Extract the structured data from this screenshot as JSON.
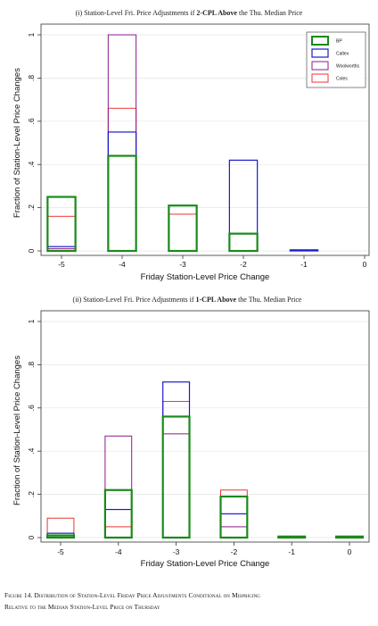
{
  "figure": {
    "caption_line1": "Figure 14. Distribution of Station-Level Friday Price Adjustments Conditional on Mispricing",
    "caption_line2": "Relative to the Median Station-Level Price on Thursday"
  },
  "colors": {
    "BP": "#1a8a1a",
    "Caltex": "#1a1acc",
    "Woolworths": "#8c1a8c",
    "Coles": "#ee3333"
  },
  "chart_data": [
    {
      "type": "bar",
      "title_pre": "(i) Station-Level Fri. Price Adjustments if ",
      "title_bold": "2-CPL Above",
      "title_post": " the Thu. Median Price",
      "xlabel": "Friday Station-Level Price Change",
      "ylabel": "Fraction of Station-Level Price Changes",
      "categories": [
        -5,
        -4,
        -3,
        -2,
        -1,
        0
      ],
      "xtick_labels": [
        "-5",
        "-4",
        "-3",
        "-2",
        "-1",
        "0"
      ],
      "ylim": [
        0,
        1
      ],
      "yticks": [
        0,
        0.2,
        0.4,
        0.6,
        0.8,
        1
      ],
      "ytick_labels": [
        "0",
        ".2",
        ".4",
        ".6",
        ".8",
        "1"
      ],
      "legend": {
        "entries": [
          "BP",
          "Caltex",
          "Woolworths",
          "Coles"
        ],
        "placement": "top-right"
      },
      "series": [
        {
          "name": "BP",
          "values": [
            0.25,
            0.44,
            0.21,
            0.08,
            0,
            0
          ]
        },
        {
          "name": "Caltex",
          "values": [
            0.02,
            0.55,
            0,
            0.42,
            0.005,
            0
          ]
        },
        {
          "name": "Woolworths",
          "values": [
            0.01,
            1.0,
            0,
            0,
            0,
            0
          ]
        },
        {
          "name": "Coles",
          "values": [
            0.16,
            0.66,
            0.17,
            0,
            0,
            0
          ]
        }
      ]
    },
    {
      "type": "bar",
      "title_pre": "(ii) Station-Level Fri. Price Adjustments if ",
      "title_bold": "1-CPL Above",
      "title_post": " the Thu. Median Price",
      "xlabel": "Friday Station-Level Price Change",
      "ylabel": "Fraction of Station-Level Price Changes",
      "categories": [
        -5,
        -4,
        -3,
        -2,
        -1,
        0
      ],
      "xtick_labels": [
        "-5",
        "-4",
        "-3",
        "-2",
        "-1",
        "0"
      ],
      "ylim": [
        0,
        1
      ],
      "yticks": [
        0,
        0.2,
        0.4,
        0.6,
        0.8,
        1
      ],
      "ytick_labels": [
        "0",
        ".2",
        ".4",
        ".6",
        ".8",
        "1"
      ],
      "series": [
        {
          "name": "BP",
          "values": [
            0.01,
            0.22,
            0.56,
            0.19,
            0.005,
            0.005
          ]
        },
        {
          "name": "Caltex",
          "values": [
            0.02,
            0.13,
            0.72,
            0.11,
            0,
            0.005
          ]
        },
        {
          "name": "Woolworths",
          "values": [
            0.01,
            0.47,
            0.48,
            0.05,
            0,
            0
          ]
        },
        {
          "name": "Coles",
          "values": [
            0.09,
            0.05,
            0.63,
            0.22,
            0,
            0
          ]
        }
      ]
    }
  ]
}
